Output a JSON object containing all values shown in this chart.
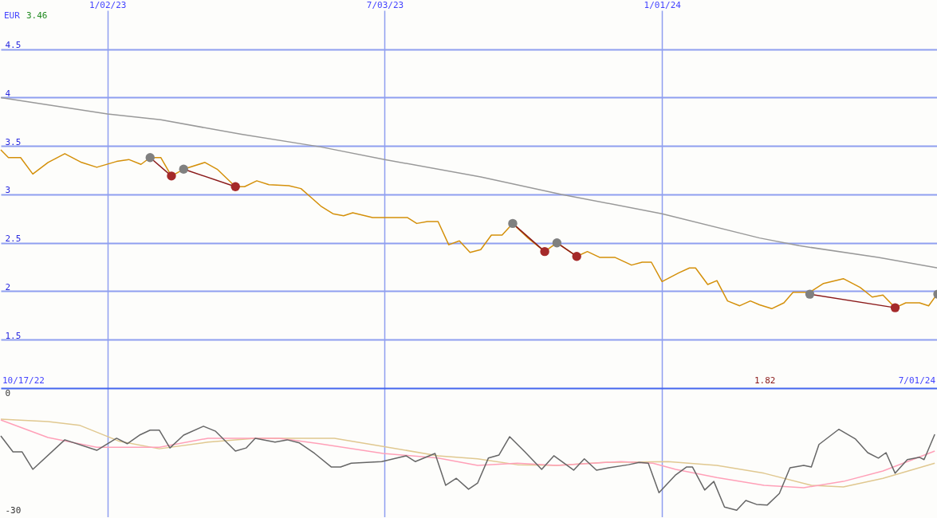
{
  "chart_data": [
    {
      "type": "line",
      "annotations": [
        "EUR",
        "3.46",
        "10/17/22",
        "1.82",
        "7/01/24"
      ],
      "xlim": [
        "2022-10-24",
        "2024-06-30"
      ],
      "xticks": [
        {
          "value": "2023-01-02",
          "label": "1/02/23"
        },
        {
          "value": "2023-07-03",
          "label": "7/03/23"
        },
        {
          "value": "2024-01-01",
          "label": "1/01/24"
        }
      ],
      "ylim": [
        1.0,
        4.9
      ],
      "yticks": [
        1.5,
        2,
        2.5,
        3,
        3.5,
        4,
        4.5
      ],
      "grid": true,
      "series": [
        {
          "color": "#999999",
          "x": [
            "2022-10-24",
            "2023-01-02",
            "2023-02-06",
            "2023-03-31",
            "2023-05-22",
            "2023-07-03",
            "2023-09-04",
            "2023-10-27",
            "2024-01-01",
            "2024-03-05",
            "2024-03-31",
            "2024-05-22",
            "2024-06-30"
          ],
          "values": [
            4.0,
            3.83,
            3.77,
            3.62,
            3.49,
            3.36,
            3.18,
            3.0,
            2.8,
            2.55,
            2.47,
            2.35,
            2.24
          ]
        },
        {
          "color": "#d4900a",
          "x": [
            "2022-10-24",
            "2022-10-29",
            "2022-11-06",
            "2022-11-14",
            "2022-11-24",
            "2022-12-05",
            "2022-12-16",
            "2022-12-26",
            "2023-01-08",
            "2023-01-16",
            "2023-01-24",
            "2023-01-30",
            "2023-02-06",
            "2023-02-13",
            "2023-02-21",
            "2023-03-07",
            "2023-03-15",
            "2023-03-27",
            "2023-04-02",
            "2023-04-10",
            "2023-04-18",
            "2023-05-01",
            "2023-05-09",
            "2023-05-17",
            "2023-05-22",
            "2023-05-30",
            "2023-06-06",
            "2023-06-12",
            "2023-06-25",
            "2023-07-18",
            "2023-07-24",
            "2023-07-31",
            "2023-08-07",
            "2023-08-14",
            "2023-08-21",
            "2023-08-28",
            "2023-09-04",
            "2023-09-11",
            "2023-09-18",
            "2023-09-25",
            "2023-10-05",
            "2023-10-16",
            "2023-10-24",
            "2023-11-06",
            "2023-11-13",
            "2023-11-21",
            "2023-12-01",
            "2023-12-12",
            "2023-12-19",
            "2023-12-25",
            "2024-01-01",
            "2024-01-12",
            "2024-01-19",
            "2024-01-23",
            "2024-01-31",
            "2024-02-06",
            "2024-02-13",
            "2024-02-21",
            "2024-02-28",
            "2024-03-05",
            "2024-03-13",
            "2024-03-21",
            "2024-03-27",
            "2024-04-07",
            "2024-04-16",
            "2024-04-29",
            "2024-05-10",
            "2024-05-18",
            "2024-05-25",
            "2024-06-02",
            "2024-06-09",
            "2024-06-18",
            "2024-06-24",
            "2024-06-30"
          ],
          "values": [
            3.46,
            3.38,
            3.38,
            3.21,
            3.33,
            3.42,
            3.33,
            3.28,
            3.34,
            3.36,
            3.31,
            3.38,
            3.38,
            3.19,
            3.26,
            3.33,
            3.26,
            3.08,
            3.08,
            3.14,
            3.1,
            3.09,
            3.06,
            2.95,
            2.88,
            2.8,
            2.78,
            2.81,
            2.76,
            2.76,
            2.7,
            2.72,
            2.72,
            2.48,
            2.52,
            2.4,
            2.43,
            2.58,
            2.58,
            2.7,
            2.55,
            2.41,
            2.5,
            2.36,
            2.41,
            2.35,
            2.35,
            2.27,
            2.3,
            2.3,
            2.1,
            2.19,
            2.24,
            2.24,
            2.07,
            2.11,
            1.9,
            1.85,
            1.9,
            1.86,
            1.82,
            1.88,
            1.99,
            1.99,
            2.08,
            2.13,
            2.04,
            1.94,
            1.96,
            1.83,
            1.88,
            1.88,
            1.85,
            1.98
          ]
        },
        {
          "color": "#8b1a1a",
          "x": [
            "2023-01-30",
            "2023-02-13"
          ],
          "values": [
            3.38,
            3.19
          ]
        },
        {
          "color": "#8b1a1a",
          "x": [
            "2023-02-21",
            "2023-03-27"
          ],
          "values": [
            3.26,
            3.08
          ]
        },
        {
          "color": "#8b1a1a",
          "x": [
            "2023-09-25",
            "2023-10-16"
          ],
          "values": [
            2.7,
            2.41
          ]
        },
        {
          "color": "#8b1a1a",
          "x": [
            "2023-10-24",
            "2023-11-06"
          ],
          "values": [
            2.5,
            2.36
          ]
        },
        {
          "color": "#8b1a1a",
          "x": [
            "2024-04-07",
            "2024-06-02"
          ],
          "values": [
            1.97,
            1.83
          ]
        },
        {
          "type": "scatter",
          "color": "#808080",
          "marker": "circle",
          "x": [
            "2023-01-30",
            "2023-02-21",
            "2023-09-25",
            "2023-10-24",
            "2024-04-07",
            "2024-06-30"
          ],
          "values": [
            3.38,
            3.26,
            2.7,
            2.5,
            1.97,
            1.97
          ]
        },
        {
          "type": "scatter",
          "color": "#a52a2a",
          "marker": "circle",
          "x": [
            "2023-02-13",
            "2023-03-27",
            "2023-10-16",
            "2023-11-06",
            "2024-06-02"
          ],
          "values": [
            3.19,
            3.08,
            2.41,
            2.36,
            1.83
          ]
        }
      ]
    },
    {
      "type": "line",
      "xlim": [
        "2022-10-24",
        "2024-06-30"
      ],
      "xticks": [
        {
          "value": "2023-01-02",
          "label": null
        },
        {
          "value": "2023-07-03",
          "label": null
        },
        {
          "value": "2024-01-01",
          "label": null
        }
      ],
      "ylim": [
        -31.8,
        1.4
      ],
      "yticks": [
        0,
        -30
      ],
      "grid": "x",
      "tick_labels": "y",
      "series": [
        {
          "color": "#e0c890",
          "x": [
            "2022-10-24",
            "2022-11-24",
            "2022-12-15",
            "2023-01-10",
            "2023-02-05",
            "2023-03-09",
            "2023-04-09",
            "2023-05-31",
            "2023-07-02",
            "2023-08-07",
            "2023-09-02",
            "2023-09-28",
            "2023-10-24",
            "2023-11-24",
            "2024-01-05",
            "2024-02-06",
            "2024-03-08",
            "2024-04-08",
            "2024-04-29",
            "2024-05-25",
            "2024-06-28"
          ],
          "values": [
            -6.6,
            -7.2,
            -8.2,
            -12.3,
            -14.2,
            -12.5,
            -11.5,
            -11.5,
            -13.6,
            -16,
            -16.8,
            -18.3,
            -18.5,
            -17.7,
            -17.5,
            -18.5,
            -20.5,
            -23.6,
            -24,
            -21.8,
            -17.9
          ]
        },
        {
          "color": "#ffa0b8",
          "x": [
            "2022-10-24",
            "2022-11-24",
            "2022-12-26",
            "2023-02-05",
            "2023-03-09",
            "2023-03-30",
            "2023-04-25",
            "2023-05-21",
            "2023-07-02",
            "2023-08-07",
            "2023-09-02",
            "2023-09-28",
            "2023-10-24",
            "2023-12-05",
            "2023-12-26",
            "2024-01-10",
            "2024-02-06",
            "2024-03-08",
            "2024-04-03",
            "2024-04-29",
            "2024-05-25",
            "2024-06-28"
          ],
          "values": [
            -6.8,
            -11.3,
            -13.8,
            -13.8,
            -11.5,
            -11.5,
            -11.5,
            -12.9,
            -15.4,
            -16.6,
            -18.5,
            -17.9,
            -18.5,
            -17.5,
            -17.9,
            -19.5,
            -21.6,
            -23.6,
            -24.2,
            -22.6,
            -19.9,
            -14.8
          ]
        },
        {
          "color": "#666666",
          "x": [
            "2022-10-24",
            "2022-11-01",
            "2022-11-07",
            "2022-11-14",
            "2022-12-05",
            "2022-12-26",
            "2023-01-08",
            "2023-01-15",
            "2023-01-23",
            "2023-01-30",
            "2023-02-05",
            "2023-02-12",
            "2023-02-21",
            "2023-03-06",
            "2023-03-14",
            "2023-03-27",
            "2023-04-03",
            "2023-04-09",
            "2023-04-22",
            "2023-04-30",
            "2023-05-08",
            "2023-05-18",
            "2023-05-29",
            "2023-06-04",
            "2023-06-11",
            "2023-07-01",
            "2023-07-17",
            "2023-07-23",
            "2023-08-05",
            "2023-08-12",
            "2023-08-19",
            "2023-08-27",
            "2023-09-02",
            "2023-09-09",
            "2023-09-16",
            "2023-09-23",
            "2023-10-03",
            "2023-10-14",
            "2023-10-22",
            "2023-11-04",
            "2023-11-11",
            "2023-11-19",
            "2023-11-27",
            "2023-12-10",
            "2023-12-17",
            "2023-12-23",
            "2023-12-30",
            "2024-01-10",
            "2024-01-17",
            "2024-01-21",
            "2024-01-29",
            "2024-02-04",
            "2024-02-11",
            "2024-02-19",
            "2024-02-25",
            "2024-03-03",
            "2024-03-10",
            "2024-03-18",
            "2024-03-25",
            "2024-04-03",
            "2024-04-08",
            "2024-04-13",
            "2024-04-26",
            "2024-05-07",
            "2024-05-15",
            "2024-05-22",
            "2024-05-27",
            "2024-06-02",
            "2024-06-10",
            "2024-06-18",
            "2024-06-21",
            "2024-06-28"
          ],
          "values": [
            -10.9,
            -15,
            -15,
            -19.5,
            -11.9,
            -14.6,
            -11.5,
            -12.9,
            -10.7,
            -9.4,
            -9.4,
            -14,
            -10.7,
            -8.4,
            -9.7,
            -14.8,
            -14,
            -11.5,
            -12.5,
            -11.9,
            -12.7,
            -15.4,
            -18.9,
            -18.9,
            -17.9,
            -17.5,
            -16,
            -17.5,
            -15.4,
            -23.6,
            -21.8,
            -24.6,
            -23,
            -16.6,
            -15.8,
            -11.1,
            -15,
            -19.5,
            -16,
            -19.7,
            -16.8,
            -19.7,
            -19.1,
            -18.3,
            -17.7,
            -17.9,
            -25.5,
            -20.9,
            -18.9,
            -18.9,
            -24.8,
            -22.6,
            -29.2,
            -30,
            -27.5,
            -28.5,
            -28.7,
            -25.7,
            -19.1,
            -18.5,
            -18.9,
            -13.1,
            -9.2,
            -11.7,
            -15.2,
            -16.6,
            -15.2,
            -20.5,
            -17,
            -16.4,
            -17,
            -10.5
          ]
        }
      ]
    }
  ]
}
